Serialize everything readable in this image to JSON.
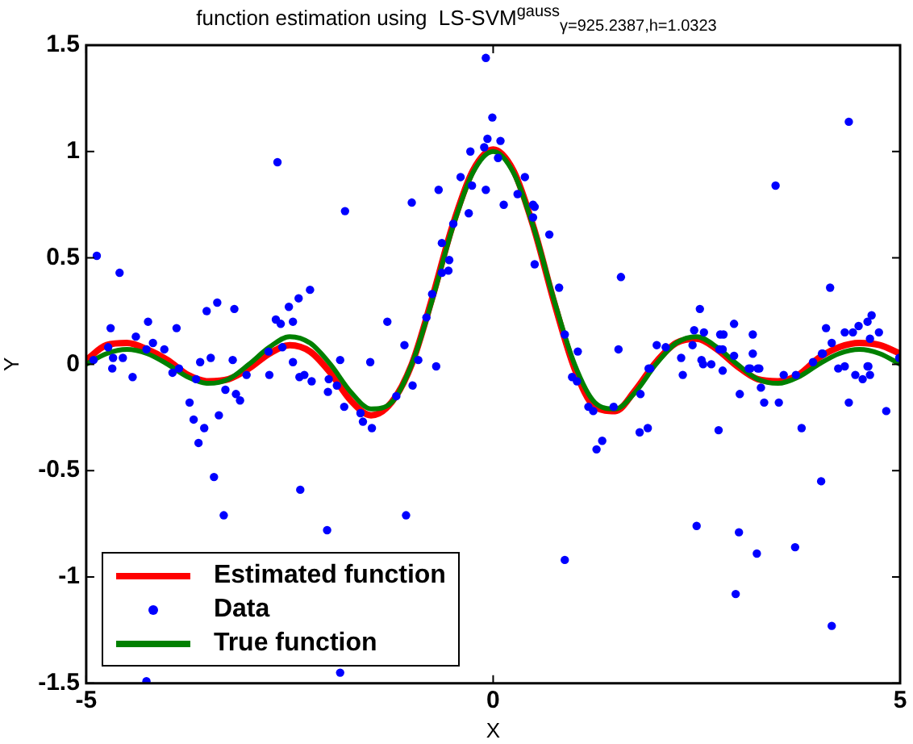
{
  "chart_data": {
    "type": "line",
    "title": "function estimation using  LS-SVM$^{gauss}$$_{γ=925.2387,h=1.0323}$",
    "xlabel": "X",
    "ylabel": "Y",
    "xlim": [
      -5,
      5
    ],
    "xticks": [
      -5,
      0,
      5
    ],
    "ylim": [
      -1.5,
      1.5
    ],
    "yticks": [
      -1.5,
      -1,
      -0.5,
      0,
      0.5,
      1,
      1.5
    ],
    "grid": false,
    "legend": "bottom left",
    "series": [
      {
        "name": "Estimated function",
        "marker": "none",
        "color": "#ff0000",
        "x": [
          -5,
          -4.75,
          -4.5,
          -4.25,
          -4,
          -3.75,
          -3.5,
          -3.25,
          -3,
          -2.75,
          -2.5,
          -2.25,
          -2,
          -1.75,
          -1.5,
          -1.25,
          -1,
          -0.75,
          -0.5,
          -0.25,
          0,
          0.25,
          0.5,
          0.75,
          1,
          1.25,
          1.5,
          1.75,
          2,
          2.25,
          2.5,
          2.75,
          3,
          3.25,
          3.5,
          3.75,
          4,
          4.25,
          4.5,
          4.75,
          5
        ],
        "values": [
          0.02,
          0.09,
          0.1,
          0.07,
          0.02,
          -0.05,
          -0.08,
          -0.07,
          -0.02,
          0.05,
          0.09,
          0.06,
          -0.04,
          -0.17,
          -0.24,
          -0.18,
          0,
          0.31,
          0.65,
          0.91,
          1.01,
          0.91,
          0.64,
          0.29,
          -0.02,
          -0.2,
          -0.22,
          -0.12,
          0.01,
          0.1,
          0.12,
          0.07,
          -0.01,
          -0.07,
          -0.08,
          -0.05,
          0.03,
          0.08,
          0.1,
          0.09,
          0.05
        ]
      },
      {
        "name": "Data",
        "type": "scatter",
        "marker": "circle",
        "color": "#0000ff",
        "x": [
          -4.87,
          -4.59,
          -2.65,
          -1.82,
          -4.7,
          -4.24,
          -3.89,
          -3.52,
          -3.39,
          -3.18,
          -2.67,
          -2.61,
          -2.51,
          -2.39,
          -2.25,
          -2.46,
          -4.39,
          -4.73,
          -4.26,
          -4.18,
          -4.04,
          -4.55,
          -4.67,
          -4.91,
          -3.6,
          -3.2,
          -2.76,
          -2.59,
          -2.46,
          -1.88,
          -4.68,
          -4.26,
          -3.43,
          -3.31,
          -3.62,
          -3.55,
          -3.68,
          -3.73,
          -3.37,
          -3.11,
          -3.16,
          -3.29,
          -4.43,
          -3.65,
          -2.37,
          -2.04,
          -1.88,
          -1.07,
          -0.7,
          -0.99,
          -1.19,
          -1.49,
          -1.6,
          -1.63,
          -1.83,
          -1.92,
          -2.03,
          -2.23,
          -2.38,
          -2.32,
          -2.75,
          -3.03,
          -1.51,
          -1.09,
          -0.92,
          -2.02,
          -3.47,
          -3.86,
          -3.94,
          -0.09,
          -0.01,
          -0.07,
          0.09,
          -0.11,
          -0.28,
          0.06,
          0.39,
          0.3,
          0.49,
          0.51,
          0.13,
          -0.09,
          -0.26,
          -0.4,
          -0.67,
          -1,
          -0.3,
          -0.49,
          0.49,
          0.69,
          0.51,
          0.81,
          -0.63,
          -0.54,
          -0.55,
          -0.63,
          -0.75,
          -0.82,
          -1.3,
          1.57,
          1.54,
          1.04,
          0.88,
          4.37,
          3.47,
          4.14,
          2.54,
          2.96,
          2.47,
          2.59,
          2.79,
          2.83,
          3.19,
          4.09,
          4.32,
          4.42,
          4.49,
          4.6,
          4.65,
          4.74,
          4.16,
          4.63,
          2.01,
          2.12,
          2.31,
          2.45,
          2.56,
          2.68,
          2.96,
          3.19,
          3.16,
          3.25,
          4.05,
          3.93,
          4.6,
          4.24,
          4.99,
          1.91,
          0.88,
          2.5,
          3.02,
          3.24,
          2.98,
          3.71,
          4.16,
          4.03,
          1.27,
          1.34,
          1.8,
          1.9,
          2.77,
          3.79,
          4.83,
          4.37,
          3.51,
          3.33,
          3.03,
          1.48,
          1.23,
          1.17,
          1.81,
          1.03,
          0.97,
          1.93,
          2.33,
          2.78,
          2.82,
          2.58,
          2.82,
          3.14,
          3.27,
          3.29,
          3.57,
          3.72,
          4.04,
          4.32,
          4.45,
          4.54,
          4.63,
          4.61
        ],
        "values": [
          0.51,
          0.43,
          0.95,
          0.72,
          0.17,
          0.2,
          0.17,
          0.25,
          0.29,
          0.26,
          0.21,
          0.19,
          0.27,
          0.31,
          0.35,
          0.2,
          0.13,
          0.08,
          0.07,
          0.1,
          0.07,
          0.03,
          0.03,
          0.02,
          0.01,
          0.02,
          0.06,
          0.08,
          0.01,
          0.02,
          -0.02,
          -1.49,
          -0.53,
          -0.71,
          -0.37,
          -0.3,
          -0.26,
          -0.18,
          -0.24,
          -0.17,
          -0.14,
          -0.12,
          -0.06,
          -0.07,
          -0.59,
          -0.78,
          -1.45,
          -0.71,
          -0.01,
          -0.1,
          -0.15,
          -0.3,
          -0.27,
          -0.23,
          -0.2,
          -0.1,
          -0.13,
          -0.08,
          -0.06,
          -0.05,
          -0.05,
          -0.05,
          0.01,
          0.09,
          0.02,
          -0.07,
          0.03,
          -0.02,
          -0.04,
          1.44,
          1.16,
          1.06,
          1.05,
          1.02,
          1,
          0.97,
          0.88,
          0.8,
          0.75,
          0.74,
          0.75,
          0.82,
          0.84,
          0.88,
          0.82,
          0.76,
          0.71,
          0.66,
          0.69,
          0.61,
          0.47,
          0.36,
          0.57,
          0.49,
          0.44,
          0.43,
          0.33,
          0.22,
          0.2,
          0.41,
          0.07,
          0.06,
          0.14,
          1.14,
          0.84,
          0.36,
          0.26,
          0.19,
          0.16,
          0.15,
          0.14,
          0.14,
          0.14,
          0.17,
          0.15,
          0.15,
          0.18,
          0.2,
          0.23,
          0.15,
          0.1,
          0.12,
          0.09,
          0.08,
          0.03,
          0.09,
          0.02,
          0,
          0.04,
          0.05,
          -0.02,
          -0.02,
          0.05,
          0.01,
          -0.01,
          -0.02,
          0.03,
          -0.02,
          -0.92,
          -0.76,
          -0.79,
          -0.89,
          -1.08,
          -0.86,
          -1.23,
          -0.55,
          -0.4,
          -0.36,
          -0.32,
          -0.3,
          -0.31,
          -0.3,
          -0.22,
          -0.18,
          -0.18,
          -0.18,
          -0.14,
          -0.2,
          -0.22,
          -0.2,
          -0.14,
          -0.08,
          -0.06,
          -0.02,
          -0.05,
          0.07,
          0.07,
          0,
          -0.03,
          -0.02,
          -0.02,
          -0.11,
          -0.05,
          -0.05,
          0.05,
          -0.01,
          -0.05,
          -0.07,
          -0.05,
          -0.01
        ]
      },
      {
        "name": "True function",
        "marker": "none",
        "color": "#008000",
        "x": [
          -5,
          -4.75,
          -4.5,
          -4.25,
          -4,
          -3.75,
          -3.5,
          -3.25,
          -3,
          -2.75,
          -2.5,
          -2.25,
          -2,
          -1.75,
          -1.5,
          -1.25,
          -1,
          -0.75,
          -0.5,
          -0.25,
          0,
          0.25,
          0.5,
          0.75,
          1,
          1.25,
          1.5,
          1.75,
          2,
          2.25,
          2.5,
          2.75,
          3,
          3.25,
          3.5,
          3.75,
          4,
          4.25,
          4.5,
          4.75,
          5
        ],
        "values": [
          0,
          0.05,
          0.07,
          0.05,
          0,
          -0.06,
          -0.09,
          -0.07,
          0,
          0.08,
          0.13,
          0.1,
          0,
          -0.13,
          -0.21,
          -0.18,
          0,
          0.3,
          0.64,
          0.9,
          1,
          0.9,
          0.64,
          0.3,
          0,
          -0.18,
          -0.21,
          -0.13,
          0,
          0.1,
          0.13,
          0.08,
          0,
          -0.07,
          -0.09,
          -0.06,
          0,
          0.05,
          0.07,
          0.05,
          0
        ]
      }
    ]
  }
}
